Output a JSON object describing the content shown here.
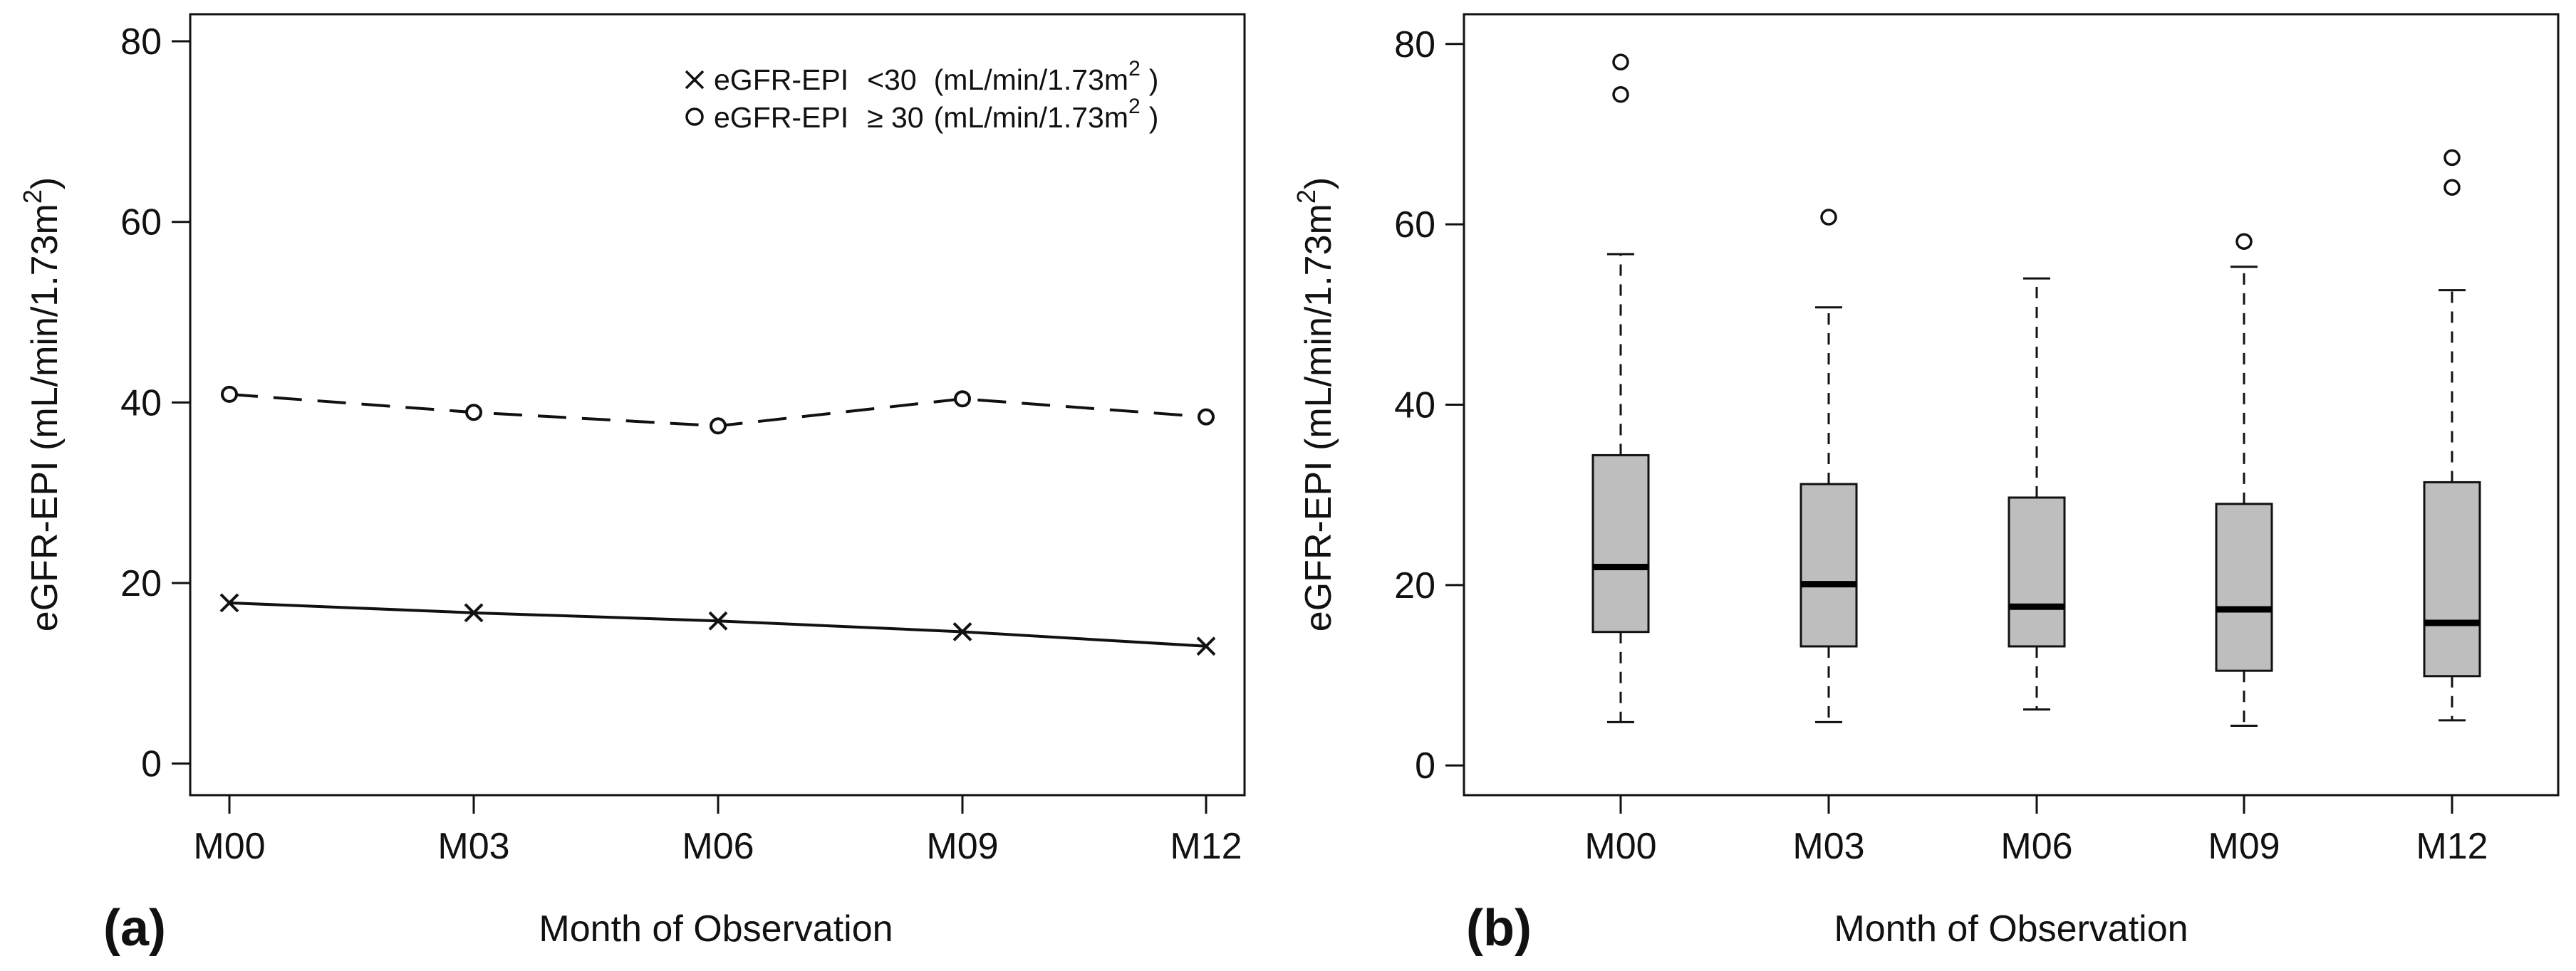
{
  "chart_data": [
    {
      "type": "line",
      "panel_label": "(a)",
      "categories": [
        "M00",
        "M03",
        "M06",
        "M09",
        "M12"
      ],
      "xlabel": "Month of Observation",
      "ylabel": "eGFR-EPI (mL/min/1.73m",
      "ylabel_sup": "2",
      "ylabel_close": ")",
      "ylim": [
        -3.5,
        83
      ],
      "yticks": [
        "0",
        "20",
        "40",
        "60",
        "80"
      ],
      "grid": false,
      "legend_position": "top-right",
      "series": [
        {
          "name": "eGFR-EPI <30 (mL/min/1.73m² )",
          "legend_prefix": "eGFR-EPI",
          "legend_op": "<30",
          "legend_unit": "(mL/min/1.73m",
          "legend_sup": "2",
          "legend_close": ")",
          "marker": "x",
          "line": "solid",
          "values": [
            17.8,
            16.7,
            15.8,
            14.6,
            13.0
          ]
        },
        {
          "name": "eGFR-EPI ≥ 30 (mL/min/1.73m² )",
          "legend_prefix": "eGFR-EPI",
          "legend_op": "≥ 30",
          "legend_unit": "(mL/min/1.73m",
          "legend_sup": "2",
          "legend_close": ")",
          "marker": "o",
          "line": "dashed",
          "values": [
            40.9,
            38.9,
            37.4,
            40.4,
            38.4
          ]
        }
      ]
    },
    {
      "type": "box",
      "panel_label": "(b)",
      "categories": [
        "M00",
        "M03",
        "M06",
        "M09",
        "M12"
      ],
      "xlabel": "Month of Observation",
      "ylabel": "eGFR-EPI (mL/min/1.73m",
      "ylabel_sup": "2",
      "ylabel_close": ")",
      "ylim": [
        -3.3,
        83.3
      ],
      "yticks": [
        "0",
        "20",
        "40",
        "60",
        "80"
      ],
      "grid": false,
      "boxes": [
        {
          "whisker_low": 4.8,
          "q1": 14.8,
          "median": 22.0,
          "q3": 34.4,
          "whisker_high": 56.7,
          "outliers": [
            74.4,
            78.0
          ]
        },
        {
          "whisker_low": 4.8,
          "q1": 13.2,
          "median": 20.1,
          "q3": 31.2,
          "whisker_high": 50.8,
          "outliers": [
            60.8
          ]
        },
        {
          "whisker_low": 6.2,
          "q1": 13.2,
          "median": 17.6,
          "q3": 29.7,
          "whisker_high": 54.0,
          "outliers": []
        },
        {
          "whisker_low": 4.4,
          "q1": 10.5,
          "median": 17.3,
          "q3": 29.0,
          "whisker_high": 55.3,
          "outliers": [
            58.1
          ]
        },
        {
          "whisker_low": 5.0,
          "q1": 9.9,
          "median": 15.8,
          "q3": 31.4,
          "whisker_high": 52.7,
          "outliers": [
            64.1,
            67.4
          ]
        }
      ]
    }
  ]
}
